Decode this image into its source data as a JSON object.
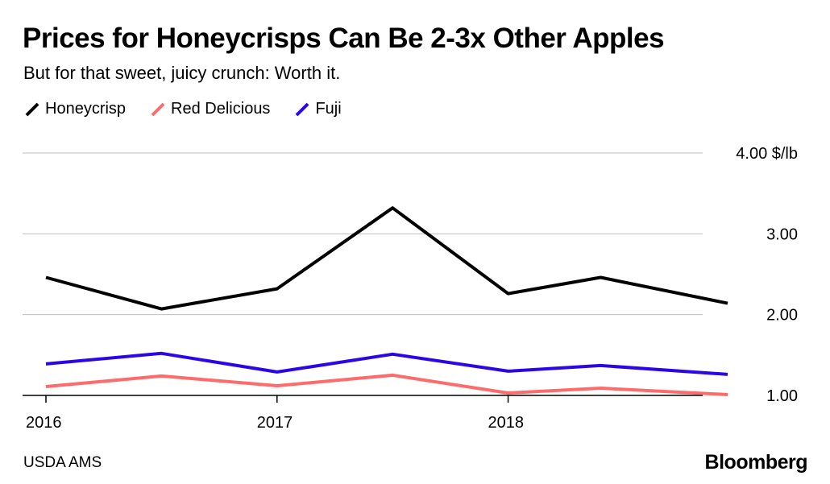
{
  "header": {
    "title": "Prices for Honeycrisps Can Be 2-3x Other Apples",
    "subtitle": "But for that sweet, juicy crunch: Worth it."
  },
  "footer": {
    "source": "USDA AMS",
    "brand": "Bloomberg"
  },
  "chart_data": {
    "type": "line",
    "title": "Prices for Honeycrisps Can Be 2-3x Other Apples",
    "subtitle": "But for that sweet, juicy crunch: Worth it.",
    "xlabel": "",
    "ylabel": "",
    "y_unit": "$/lb",
    "x_ticks": [
      "2016",
      "2017",
      "2018"
    ],
    "xlim": [
      2016.0,
      2018.95
    ],
    "ylim": [
      1.0,
      4.0
    ],
    "y_ticks": [
      {
        "value": 1.0,
        "label": "1.00"
      },
      {
        "value": 2.0,
        "label": "2.00"
      },
      {
        "value": 3.0,
        "label": "3.00"
      },
      {
        "value": 4.0,
        "label": "4.00 $/lb"
      }
    ],
    "grid": true,
    "legend_position": "top-left",
    "series": [
      {
        "name": "Honeycrisp",
        "color": "#000000",
        "points": [
          {
            "x": 2016.0,
            "y": 2.46
          },
          {
            "x": 2016.5,
            "y": 2.07
          },
          {
            "x": 2017.0,
            "y": 2.32
          },
          {
            "x": 2017.5,
            "y": 3.32
          },
          {
            "x": 2018.0,
            "y": 2.26
          },
          {
            "x": 2018.4,
            "y": 2.46
          },
          {
            "x": 2018.95,
            "y": 2.14
          }
        ]
      },
      {
        "name": "Red Delicious",
        "color": "#ff6b6b",
        "points": [
          {
            "x": 2016.0,
            "y": 1.11
          },
          {
            "x": 2016.5,
            "y": 1.24
          },
          {
            "x": 2017.0,
            "y": 1.12
          },
          {
            "x": 2017.5,
            "y": 1.25
          },
          {
            "x": 2018.0,
            "y": 1.03
          },
          {
            "x": 2018.4,
            "y": 1.09
          },
          {
            "x": 2018.95,
            "y": 1.01
          }
        ]
      },
      {
        "name": "Fuji",
        "color": "#2c06e8",
        "points": [
          {
            "x": 2016.0,
            "y": 1.39
          },
          {
            "x": 2016.5,
            "y": 1.52
          },
          {
            "x": 2017.0,
            "y": 1.29
          },
          {
            "x": 2017.5,
            "y": 1.51
          },
          {
            "x": 2018.0,
            "y": 1.3
          },
          {
            "x": 2018.4,
            "y": 1.37
          },
          {
            "x": 2018.95,
            "y": 1.26
          }
        ]
      }
    ]
  }
}
